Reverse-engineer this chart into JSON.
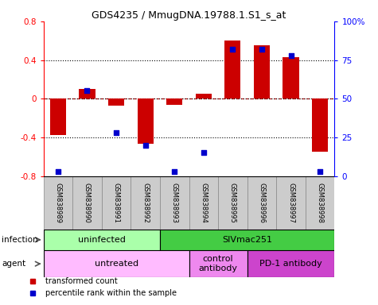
{
  "title": "GDS4235 / MmugDNA.19788.1.S1_s_at",
  "samples": [
    "GSM838989",
    "GSM838990",
    "GSM838991",
    "GSM838992",
    "GSM838993",
    "GSM838994",
    "GSM838995",
    "GSM838996",
    "GSM838997",
    "GSM838998"
  ],
  "transformed_counts": [
    -0.38,
    0.1,
    -0.07,
    -0.47,
    -0.06,
    0.05,
    0.6,
    0.55,
    0.43,
    -0.55
  ],
  "percentile_ranks": [
    3,
    55,
    28,
    20,
    3,
    15,
    82,
    82,
    78,
    3
  ],
  "bar_color": "#cc0000",
  "dot_color": "#0000cc",
  "ylim_left": [
    -0.8,
    0.8
  ],
  "ylim_right": [
    0,
    100
  ],
  "yticks_left": [
    -0.8,
    -0.4,
    0.0,
    0.4,
    0.8
  ],
  "ytick_labels_left": [
    "-0.8",
    "-0.4",
    "0",
    "0.4",
    "0.8"
  ],
  "yticks_right": [
    0,
    25,
    50,
    75,
    100
  ],
  "ytick_labels_right": [
    "0",
    "25",
    "50",
    "75",
    "100%"
  ],
  "hlines_dotted": [
    -0.4,
    0.4
  ],
  "hline_red_dashed": 0.0,
  "hline_black": 0.0,
  "infection_groups": [
    {
      "label": "uninfected",
      "start": 0,
      "end": 4,
      "color": "#aaffaa"
    },
    {
      "label": "SIVmac251",
      "start": 4,
      "end": 10,
      "color": "#44cc44"
    }
  ],
  "agent_groups": [
    {
      "label": "untreated",
      "start": 0,
      "end": 5,
      "color": "#ffbbff"
    },
    {
      "label": "control\nantibody",
      "start": 5,
      "end": 7,
      "color": "#ee88ee"
    },
    {
      "label": "PD-1 antibody",
      "start": 7,
      "end": 10,
      "color": "#cc44cc"
    }
  ],
  "legend_items": [
    {
      "label": "transformed count",
      "color": "#cc0000"
    },
    {
      "label": "percentile rank within the sample",
      "color": "#0000cc"
    }
  ],
  "bg_color": "#ffffff",
  "sample_bg_color": "#cccccc"
}
